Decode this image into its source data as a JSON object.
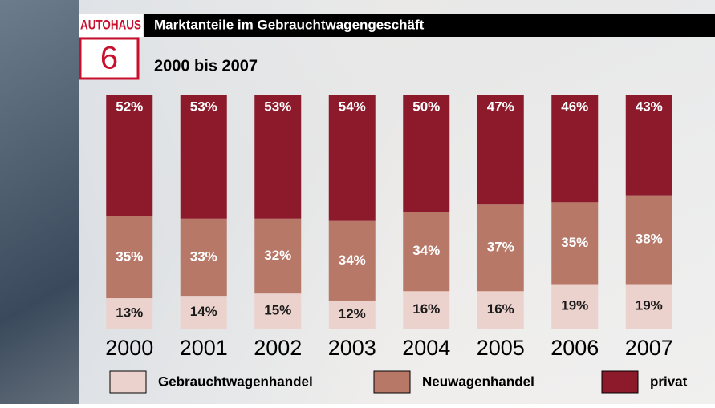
{
  "logo": {
    "brand": "AUTOHAUS",
    "issue": "6"
  },
  "chart_data": {
    "type": "stacked-bar",
    "title": "Marktanteile im Gebrauchtwagengeschäft",
    "subtitle": "2000 bis 2007",
    "categories": [
      "2000",
      "2001",
      "2002",
      "2003",
      "2004",
      "2005",
      "2006",
      "2007"
    ],
    "ylim": [
      0,
      100
    ],
    "series": [
      {
        "name": "Gebrauchtwagenhandel",
        "color": "#ecd2cd",
        "label_color": "#1a1a1a",
        "values": [
          13,
          14,
          15,
          12,
          16,
          16,
          19,
          19
        ],
        "value_labels": [
          "13%",
          "14%",
          "15%",
          "12%",
          "16%",
          "16%",
          "19%",
          "19%"
        ]
      },
      {
        "name": "Neuwagenhandel",
        "color": "#b87868",
        "label_color": "#ffffff",
        "values": [
          35,
          33,
          32,
          34,
          34,
          37,
          35,
          38
        ],
        "value_labels": [
          "35%",
          "33%",
          "32%",
          "34%",
          "34%",
          "37%",
          "35%",
          "38%"
        ]
      },
      {
        "name": "privat",
        "color": "#8c1a2b",
        "label_color": "#ffffff",
        "values": [
          52,
          53,
          53,
          54,
          50,
          47,
          46,
          43
        ],
        "value_labels": [
          "52%",
          "53%",
          "53%",
          "54%",
          "50%",
          "47%",
          "46%",
          "43%"
        ]
      }
    ]
  }
}
